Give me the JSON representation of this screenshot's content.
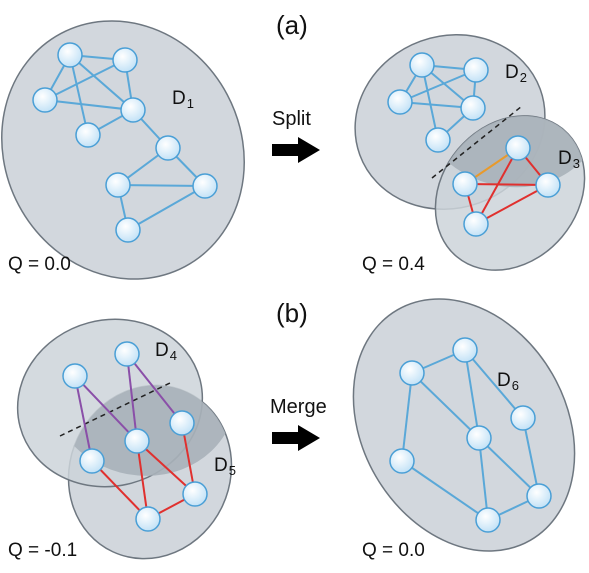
{
  "panels": {
    "a": "(a)",
    "b": "(b)"
  },
  "operations": {
    "split": "Split",
    "merge": "Merge"
  },
  "q_values": {
    "a_left": "Q = 0.0",
    "a_right": "Q = 0.4",
    "b_left": "Q = -0.1",
    "b_right": "Q = 0.0"
  },
  "communities": {
    "d1": {
      "letter": "D",
      "index": "1"
    },
    "d2": {
      "letter": "D",
      "index": "2"
    },
    "d3": {
      "letter": "D",
      "index": "3"
    },
    "d4": {
      "letter": "D",
      "index": "4"
    },
    "d5": {
      "letter": "D",
      "index": "5"
    },
    "d6": {
      "letter": "D",
      "index": "6"
    }
  },
  "colors": {
    "ellipse_fill": "#cdd3d9",
    "ellipse_stroke": "#6e7780",
    "overlap_fill": "#a9b1b9",
    "edge_blue": "#5aa8d8",
    "edge_red": "#e0302e",
    "edge_purple": "#8a4fa8",
    "edge_orange": "#e89a2c",
    "node_fill": "#dbeefb",
    "node_stroke": "#4a9fd6",
    "arrow": "#000000"
  }
}
